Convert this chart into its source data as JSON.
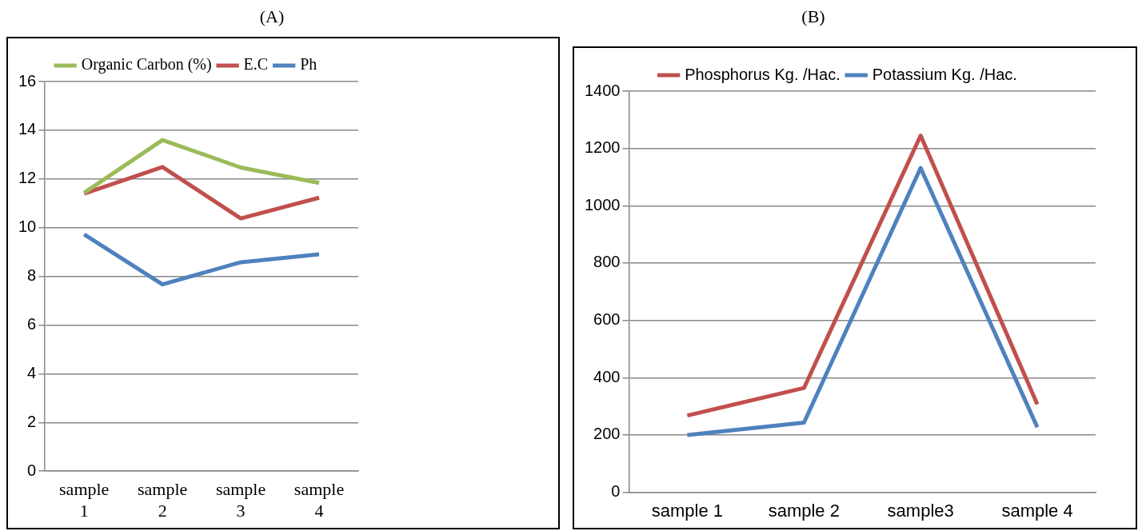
{
  "chart_data": [
    {
      "type": "line",
      "title": "(A)",
      "categories": [
        "sample 1",
        "sample 2",
        "sample 3",
        "sample 4"
      ],
      "series": [
        {
          "name": "Organic Carbon (%)",
          "color": "#9bbb59",
          "values": [
            11.43,
            13.6,
            12.47,
            11.84
          ]
        },
        {
          "name": "E.C",
          "color": "#c0504d",
          "values": [
            11.4,
            12.49,
            10.38,
            11.23
          ]
        },
        {
          "name": "Ph",
          "color": "#4f81bd",
          "values": [
            9.72,
            7.67,
            8.58,
            8.91
          ]
        }
      ],
      "ylim": [
        0,
        16
      ],
      "yticks": [
        0,
        2,
        4,
        6,
        8,
        10,
        12,
        14,
        16
      ],
      "grid": "y",
      "legend": "top",
      "marker": "none"
    },
    {
      "type": "line",
      "title": "(B)",
      "categories": [
        "sample 1",
        "sample 2",
        "sample3",
        "sample 4"
      ],
      "series": [
        {
          "name": "Phosphorus Kg. /Hac.",
          "color": "#c0504d",
          "values": [
            268,
            364,
            1245,
            307
          ]
        },
        {
          "name": "Potassium Kg. /Hac.",
          "color": "#4f81bd",
          "values": [
            200,
            243,
            1132,
            227
          ]
        }
      ],
      "ylim": [
        0,
        1400
      ],
      "yticks": [
        0,
        200,
        400,
        600,
        800,
        1000,
        1200,
        1400
      ],
      "grid": "y",
      "legend": "top",
      "marker": "none"
    }
  ]
}
